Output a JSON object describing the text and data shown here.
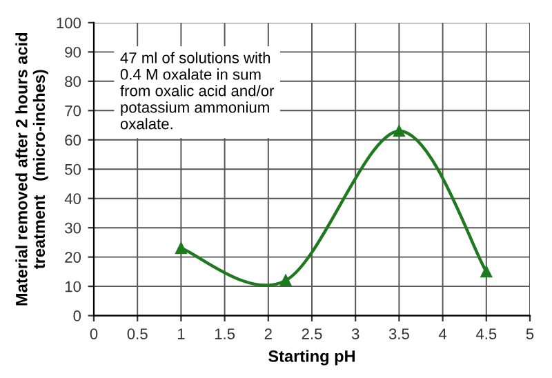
{
  "chart_data": {
    "type": "line",
    "xlabel": "Starting pH",
    "ylabel": "Material removed after 2 hours acid\ntreatment   (micro-inches)",
    "x": [
      1,
      2.2,
      3.5,
      4.5
    ],
    "series": [
      {
        "color": "#1f7a1f",
        "values": [
          23,
          12,
          63,
          15
        ]
      }
    ],
    "xlim": [
      0,
      5
    ],
    "xticks": [
      0,
      0.5,
      1,
      1.5,
      2,
      2.5,
      3,
      3.5,
      4,
      4.5,
      5
    ],
    "ylim": [
      0,
      100
    ],
    "yticks": [
      0,
      10,
      20,
      30,
      40,
      50,
      60,
      70,
      80,
      90,
      100
    ],
    "grid": true,
    "marker": "triangle",
    "line_style": "solid",
    "annotations": [
      "47 ml of solutions with\n0.4 M oxalate in sum\nfrom oxalic acid and/or\npotassium ammonium\noxalate."
    ]
  }
}
